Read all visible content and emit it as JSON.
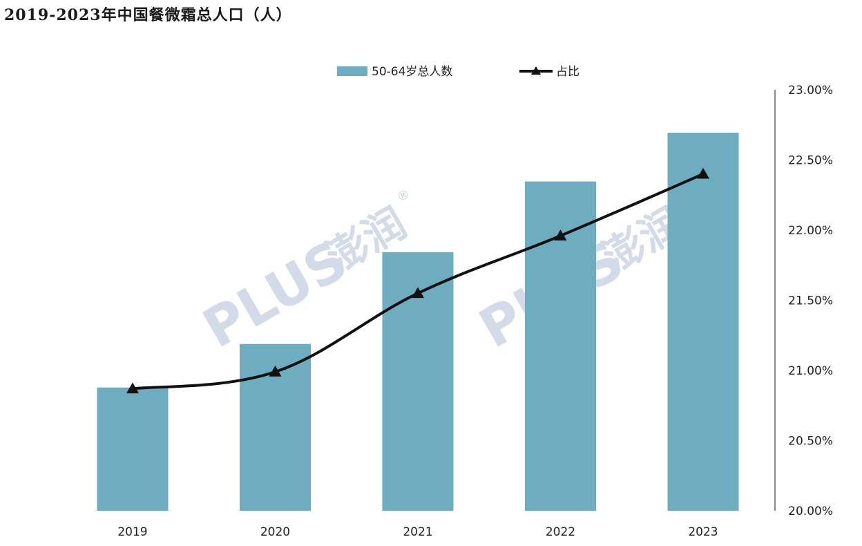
{
  "title": "2019-2023年中国餐微霜总人口（人）",
  "watermark": {
    "text": "PLUS",
    "cn_text": "澎润",
    "reg_mark": "®"
  },
  "colors": {
    "bar": "#6eacbf",
    "line": "#111111",
    "axis": "#888888",
    "watermark": "#d3dbe8",
    "watermark_accent": "#f0d68a"
  },
  "chart_data": {
    "type": "bar",
    "categories": [
      "2019",
      "2020",
      "2021",
      "2022",
      "2023"
    ],
    "series": [
      {
        "name": "50-64岁总人数",
        "type": "bar",
        "axis": "none",
        "values": [
          0.326,
          0.441,
          0.684,
          0.871,
          1.0
        ]
      },
      {
        "name": "占比",
        "type": "line",
        "axis": "right",
        "marker": "triangle",
        "values": [
          20.87,
          20.99,
          21.55,
          21.96,
          22.4
        ]
      }
    ],
    "y_right": {
      "ylim": [
        20.0,
        23.0
      ],
      "ticks": [
        "20.00%",
        "20.50%",
        "21.00%",
        "21.50%",
        "22.00%",
        "22.50%",
        "23.00%"
      ],
      "tick_values": [
        20.0,
        20.5,
        21.0,
        21.5,
        22.0,
        22.5,
        23.0
      ]
    },
    "legend": {
      "position": "top-center",
      "entries": [
        "50-64岁总人数",
        "占比"
      ]
    },
    "grid": false
  }
}
